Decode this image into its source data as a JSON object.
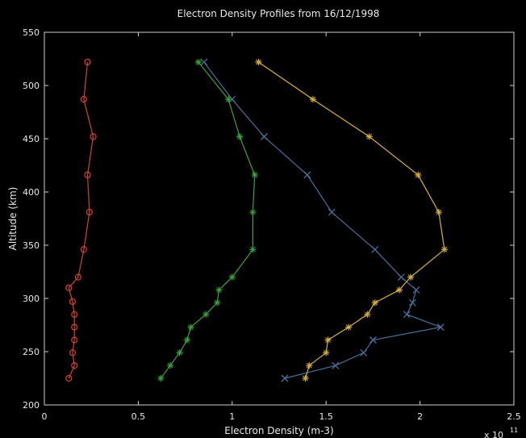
{
  "chart_data": {
    "type": "line",
    "title": "Electron Density Profiles from 16/12/1998",
    "xlabel": "Electron Density (m-3)",
    "ylabel": "Altitude (km)",
    "x_multiplier_label": "x 10",
    "x_multiplier_exponent": "11",
    "xlim": [
      0,
      2.5
    ],
    "ylim": [
      200,
      550
    ],
    "x_ticks": [
      0,
      0.5,
      1,
      1.5,
      2,
      2.5
    ],
    "x_tick_labels": [
      "0",
      "0.5",
      "1",
      "1.5",
      "2",
      "2.5"
    ],
    "y_ticks": [
      200,
      250,
      300,
      350,
      400,
      450,
      500,
      550
    ],
    "y_tick_labels": [
      "200",
      "250",
      "300",
      "350",
      "400",
      "450",
      "500",
      "550"
    ],
    "grid": false,
    "series": [
      {
        "color": "#d9412e",
        "marker": "circle",
        "points": [
          [
            0.23,
            522
          ],
          [
            0.21,
            487
          ],
          [
            0.26,
            452
          ],
          [
            0.23,
            416
          ],
          [
            0.24,
            381
          ],
          [
            0.21,
            346
          ],
          [
            0.18,
            320
          ],
          [
            0.13,
            310
          ],
          [
            0.15,
            297
          ],
          [
            0.16,
            285
          ],
          [
            0.16,
            273
          ],
          [
            0.16,
            261
          ],
          [
            0.15,
            249
          ],
          [
            0.16,
            237
          ],
          [
            0.13,
            225
          ]
        ]
      },
      {
        "color": "#3aa43a",
        "marker": "star",
        "points": [
          [
            0.82,
            522
          ],
          [
            0.98,
            487
          ],
          [
            1.04,
            452
          ],
          [
            1.12,
            416
          ],
          [
            1.11,
            381
          ],
          [
            1.11,
            346
          ],
          [
            1.0,
            320
          ],
          [
            0.93,
            308
          ],
          [
            0.92,
            296
          ],
          [
            0.86,
            285
          ],
          [
            0.78,
            273
          ],
          [
            0.76,
            261
          ],
          [
            0.72,
            249
          ],
          [
            0.67,
            237
          ],
          [
            0.62,
            225
          ]
        ]
      },
      {
        "color": "#4a6f9a",
        "marker": "x",
        "points": [
          [
            0.85,
            522
          ],
          [
            1.0,
            487
          ],
          [
            1.17,
            452
          ],
          [
            1.4,
            416
          ],
          [
            1.53,
            381
          ],
          [
            1.76,
            346
          ],
          [
            1.9,
            320
          ],
          [
            1.98,
            308
          ],
          [
            1.96,
            296
          ],
          [
            1.93,
            285
          ],
          [
            2.11,
            273
          ],
          [
            1.75,
            261
          ],
          [
            1.7,
            249
          ],
          [
            1.55,
            237
          ],
          [
            1.28,
            225
          ]
        ]
      },
      {
        "color": "#d8b13a",
        "marker": "star",
        "points": [
          [
            1.14,
            522
          ],
          [
            1.43,
            487
          ],
          [
            1.73,
            452
          ],
          [
            1.99,
            416
          ],
          [
            2.1,
            381
          ],
          [
            2.13,
            346
          ],
          [
            1.95,
            320
          ],
          [
            1.89,
            308
          ],
          [
            1.76,
            296
          ],
          [
            1.72,
            285
          ],
          [
            1.62,
            273
          ],
          [
            1.51,
            261
          ],
          [
            1.5,
            249
          ],
          [
            1.41,
            237
          ],
          [
            1.39,
            225
          ]
        ]
      }
    ]
  }
}
